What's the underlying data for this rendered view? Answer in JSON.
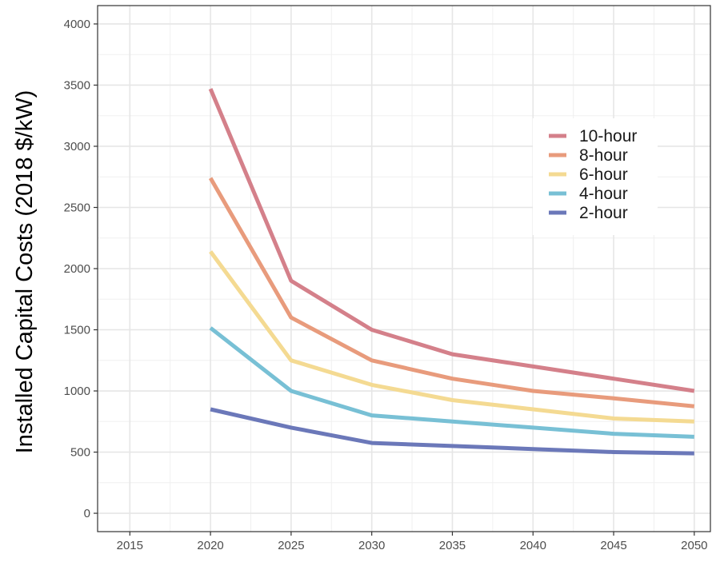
{
  "chart_data": {
    "type": "line",
    "title": "",
    "xlabel": "",
    "ylabel": "Installed Capital Costs (2018 $/kW)",
    "xlim": [
      2013,
      2051
    ],
    "ylim": [
      -150,
      4150
    ],
    "x_ticks": [
      2015,
      2020,
      2025,
      2030,
      2035,
      2040,
      2045,
      2050
    ],
    "y_ticks": [
      0,
      500,
      1000,
      1500,
      2000,
      2500,
      3000,
      3500,
      4000
    ],
    "grid": true,
    "legend_position": "top-right",
    "x": [
      2020,
      2025,
      2030,
      2035,
      2040,
      2045,
      2050
    ],
    "series": [
      {
        "name": "10-hour",
        "color": "#d4808a",
        "values": [
          3470,
          1900,
          1500,
          1300,
          1200,
          1100,
          1000
        ]
      },
      {
        "name": "8-hour",
        "color": "#e89b7c",
        "values": [
          2740,
          1600,
          1250,
          1100,
          1000,
          940,
          875
        ]
      },
      {
        "name": "6-hour",
        "color": "#f4da92",
        "values": [
          2140,
          1250,
          1050,
          925,
          850,
          775,
          750
        ]
      },
      {
        "name": "4-hour",
        "color": "#78c0d5",
        "values": [
          1515,
          1000,
          800,
          750,
          700,
          650,
          625
        ]
      },
      {
        "name": "2-hour",
        "color": "#6b78b9",
        "values": [
          850,
          700,
          575,
          550,
          525,
          500,
          490
        ]
      }
    ]
  }
}
